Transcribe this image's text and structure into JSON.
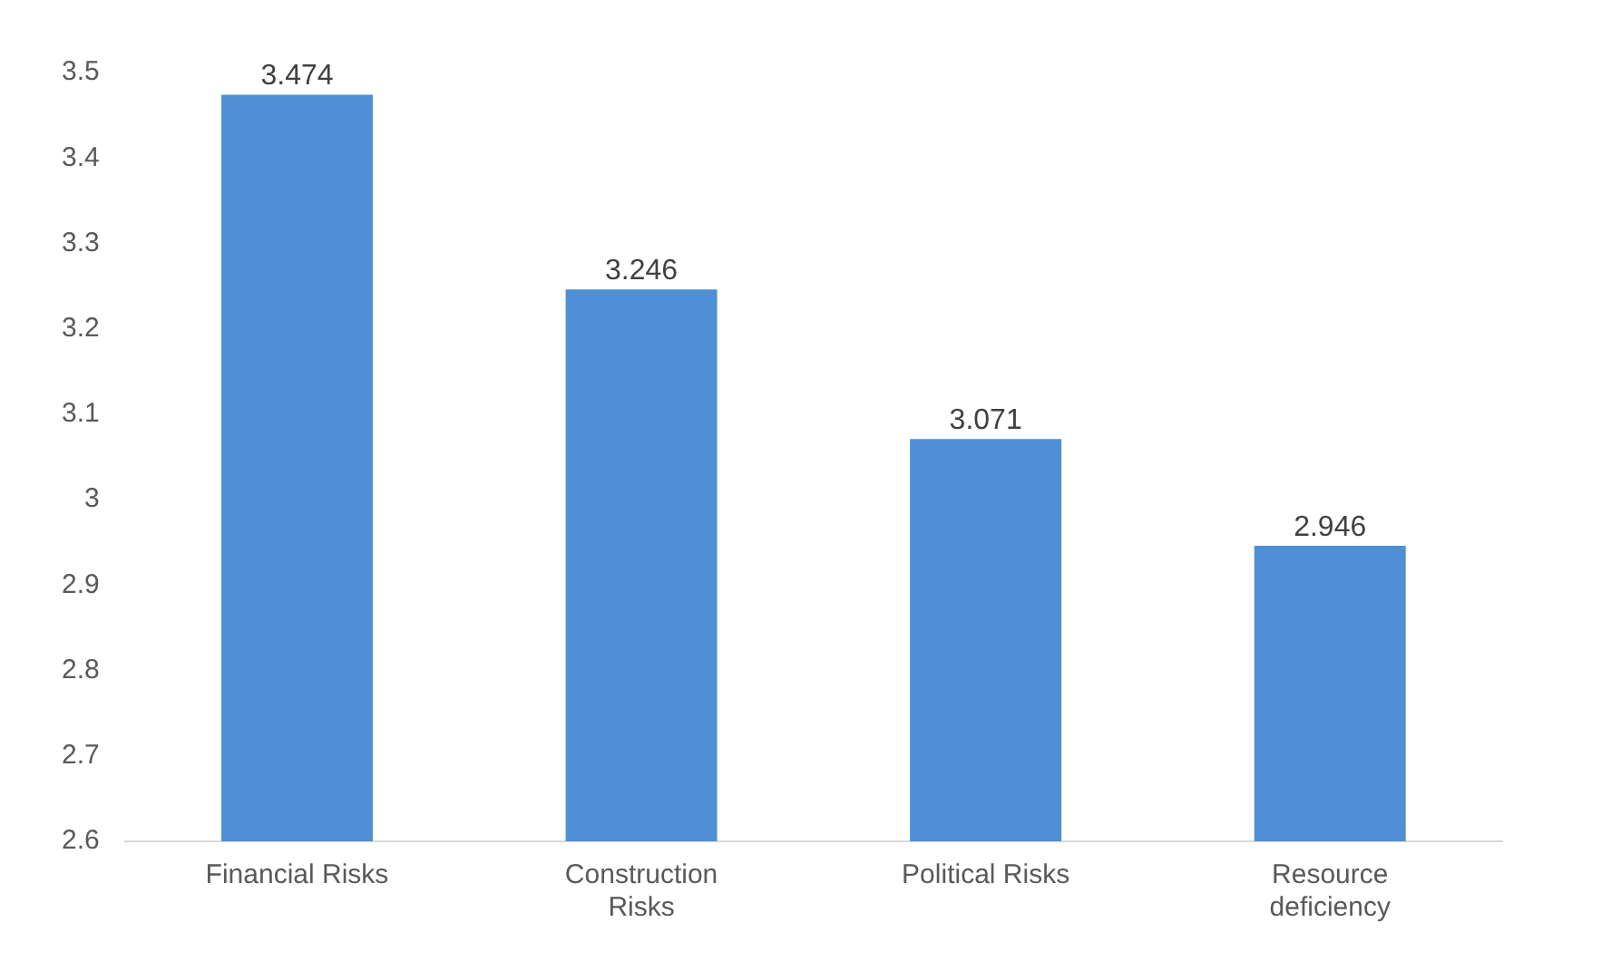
{
  "chart_data": {
    "type": "bar",
    "categories": [
      "Financial Risks",
      "Construction Risks",
      "Political Risks",
      "Resource deficiency"
    ],
    "values": [
      3.474,
      3.246,
      3.071,
      2.946
    ],
    "color": "#4f8fd6",
    "ylim": [
      2.6,
      3.5
    ],
    "yticks": [
      2.6,
      2.7,
      2.8,
      2.9,
      3,
      3.1,
      3.2,
      3.3,
      3.4,
      3.5
    ],
    "grid": false,
    "legend": false,
    "data_labels": true
  }
}
